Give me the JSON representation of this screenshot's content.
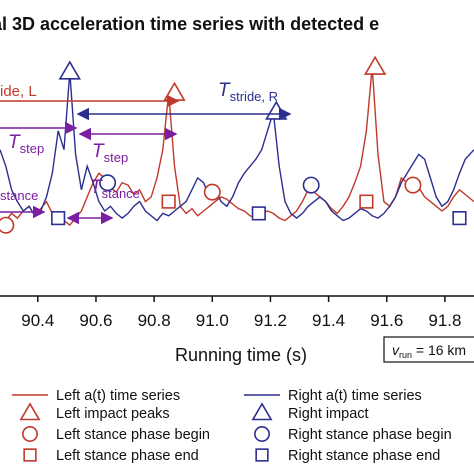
{
  "chart_data": {
    "type": "line",
    "title": "al 3D acceleration time series with detected e",
    "xlabel": "Running time (s)",
    "xlim": [
      90.27,
      91.9
    ],
    "x_ticks": [
      "90.4",
      "90.6",
      "90.8",
      "91.0",
      "91.2",
      "91.4",
      "91.6",
      "91.8"
    ],
    "x_tick_values": [
      90.4,
      90.6,
      90.8,
      91.0,
      91.2,
      91.4,
      91.6,
      91.8
    ],
    "ylim": [
      0,
      1
    ],
    "series": [
      {
        "name": "Left a(t) time series",
        "color": "#c0392b",
        "x": [
          90.27,
          90.29,
          90.31,
          90.33,
          90.35,
          90.37,
          90.39,
          90.41,
          90.43,
          90.45,
          90.47,
          90.49,
          90.51,
          90.53,
          90.55,
          90.57,
          90.59,
          90.61,
          90.63,
          90.65,
          90.67,
          90.69,
          90.71,
          90.73,
          90.75,
          90.77,
          90.79,
          90.81,
          90.83,
          90.85,
          90.87,
          90.89,
          90.91,
          90.93,
          90.95,
          90.97,
          90.99,
          91.01,
          91.03,
          91.05,
          91.07,
          91.09,
          91.11,
          91.13,
          91.15,
          91.17,
          91.19,
          91.21,
          91.23,
          91.25,
          91.27,
          91.29,
          91.31,
          91.33,
          91.35,
          91.37,
          91.39,
          91.41,
          91.43,
          91.45,
          91.47,
          91.49,
          91.51,
          91.53,
          91.55,
          91.57,
          91.59,
          91.61,
          91.63,
          91.65,
          91.67,
          91.69,
          91.71,
          91.73,
          91.75,
          91.77,
          91.79,
          91.81,
          91.83,
          91.85,
          91.87,
          91.9
        ],
        "y": [
          0.3,
          0.32,
          0.35,
          0.33,
          0.36,
          0.38,
          0.34,
          0.37,
          0.4,
          0.35,
          0.33,
          0.32,
          0.3,
          0.33,
          0.36,
          0.42,
          0.48,
          0.52,
          0.5,
          0.46,
          0.44,
          0.48,
          0.47,
          0.43,
          0.45,
          0.4,
          0.42,
          0.5,
          0.62,
          0.86,
          0.55,
          0.38,
          0.35,
          0.37,
          0.34,
          0.36,
          0.38,
          0.4,
          0.42,
          0.41,
          0.39,
          0.37,
          0.36,
          0.34,
          0.33,
          0.35,
          0.36,
          0.35,
          0.33,
          0.32,
          0.34,
          0.36,
          0.4,
          0.45,
          0.44,
          0.42,
          0.4,
          0.37,
          0.35,
          0.38,
          0.42,
          0.48,
          0.55,
          0.7,
          0.97,
          0.6,
          0.4,
          0.38,
          0.42,
          0.5,
          0.48,
          0.44,
          0.46,
          0.42,
          0.4,
          0.38,
          0.36,
          0.38,
          0.42,
          0.45,
          0.43,
          0.4
        ]
      },
      {
        "name": "Right a(t) time series",
        "color": "#2c2f8f",
        "x": [
          90.27,
          90.29,
          90.31,
          90.33,
          90.35,
          90.37,
          90.39,
          90.41,
          90.43,
          90.45,
          90.47,
          90.49,
          90.51,
          90.53,
          90.55,
          90.57,
          90.59,
          90.61,
          90.63,
          90.65,
          90.67,
          90.69,
          90.71,
          90.73,
          90.75,
          90.77,
          90.79,
          90.81,
          90.83,
          90.85,
          90.87,
          90.89,
          90.91,
          90.93,
          90.95,
          90.97,
          90.99,
          91.01,
          91.03,
          91.05,
          91.07,
          91.09,
          91.11,
          91.13,
          91.15,
          91.17,
          91.19,
          91.21,
          91.23,
          91.25,
          91.27,
          91.29,
          91.31,
          91.33,
          91.35,
          91.37,
          91.39,
          91.41,
          91.43,
          91.45,
          91.47,
          91.49,
          91.51,
          91.53,
          91.55,
          91.57,
          91.59,
          91.61,
          91.63,
          91.65,
          91.67,
          91.69,
          91.71,
          91.73,
          91.75,
          91.77,
          91.79,
          91.81,
          91.83,
          91.85,
          91.87,
          91.9
        ],
        "y": [
          0.62,
          0.55,
          0.45,
          0.4,
          0.36,
          0.38,
          0.34,
          0.36,
          0.42,
          0.52,
          0.7,
          0.62,
          0.95,
          0.6,
          0.45,
          0.55,
          0.48,
          0.4,
          0.36,
          0.38,
          0.35,
          0.33,
          0.35,
          0.38,
          0.4,
          0.36,
          0.34,
          0.32,
          0.35,
          0.34,
          0.36,
          0.38,
          0.4,
          0.45,
          0.5,
          0.48,
          0.42,
          0.45,
          0.4,
          0.38,
          0.42,
          0.48,
          0.52,
          0.55,
          0.58,
          0.62,
          0.7,
          0.78,
          0.55,
          0.4,
          0.35,
          0.33,
          0.35,
          0.38,
          0.4,
          0.42,
          0.4,
          0.36,
          0.34,
          0.32,
          0.33,
          0.35,
          0.37,
          0.36,
          0.34,
          0.33,
          0.35,
          0.38,
          0.42,
          0.48,
          0.52,
          0.56,
          0.6,
          0.58,
          0.5,
          0.42,
          0.38,
          0.4,
          0.45,
          0.52,
          0.58,
          0.62
        ]
      }
    ],
    "markers": {
      "left_impact": [
        {
          "x": 90.87,
          "y": 0.86
        },
        {
          "x": 91.56,
          "y": 0.97
        }
      ],
      "right_impact": [
        {
          "x": 90.51,
          "y": 0.95
        },
        {
          "x": 91.22,
          "y": 0.78
        }
      ],
      "left_stance_begin": [
        {
          "x": 90.29,
          "y": 0.3
        },
        {
          "x": 91.0,
          "y": 0.44
        },
        {
          "x": 91.69,
          "y": 0.47
        }
      ],
      "left_stance_end": [
        {
          "x": 90.85,
          "y": 0.4
        },
        {
          "x": 91.53,
          "y": 0.4
        }
      ],
      "right_stance_begin": [
        {
          "x": 90.64,
          "y": 0.48
        },
        {
          "x": 91.34,
          "y": 0.47
        }
      ],
      "right_stance_end": [
        {
          "x": 90.47,
          "y": 0.33
        },
        {
          "x": 91.16,
          "y": 0.35
        },
        {
          "x": 91.85,
          "y": 0.33
        }
      ]
    },
    "legend": [
      {
        "label": "Left a(t) time series",
        "kind": "line",
        "color": "#c0392b"
      },
      {
        "label": "Right a(t) time series",
        "kind": "line",
        "color": "#2c2f8f"
      },
      {
        "label": "Left impact peaks",
        "kind": "triangle",
        "color": "#c0392b"
      },
      {
        "label": "Right impact",
        "kind": "triangle",
        "color": "#2c2f8f"
      },
      {
        "label": "Left stance phase begin",
        "kind": "circle",
        "color": "#c0392b"
      },
      {
        "label": "Right stance phase begin",
        "kind": "circle",
        "color": "#2c2f8f"
      },
      {
        "label": "Left stance phase end",
        "kind": "square",
        "color": "#c0392b"
      },
      {
        "label": "Right stance phase end",
        "kind": "square",
        "color": "#2c2f8f"
      }
    ],
    "annotations": {
      "stride_left_label": "ide, L",
      "stride_right_T": "T",
      "stride_right_sub": "stride, R",
      "step_T": "T",
      "step_sub": "step",
      "stance_sub": "stance",
      "stance_T": "T",
      "speed_label_v": "v",
      "speed_label_sub": "run",
      "speed_label_rest": " = 16 km"
    },
    "colors": {
      "left": "#c0392b",
      "right": "#2c2f8f",
      "annotation": "#7b1fa2"
    }
  }
}
